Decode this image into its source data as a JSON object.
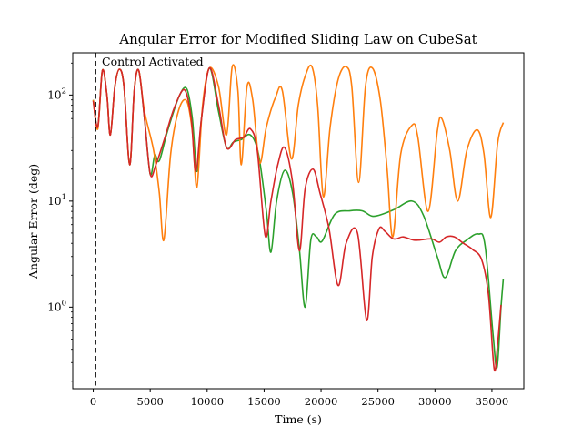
{
  "chart_data": {
    "type": "line",
    "title": "Angular Error for Modified Sliding Law on CubeSat",
    "xlabel": "Time (s)",
    "ylabel": "Angular Error (deg)",
    "xlim": [
      -1800,
      37800
    ],
    "ylim": [
      0.17,
      250
    ],
    "yscale": "log",
    "grid": false,
    "x_ticks": [
      0,
      5000,
      10000,
      15000,
      20000,
      25000,
      30000,
      35000
    ],
    "x_tick_labels": [
      "0",
      "5000",
      "10000",
      "15000",
      "20000",
      "25000",
      "30000",
      "35000"
    ],
    "y_ticks": [
      1,
      10,
      100
    ],
    "y_tick_labels": [
      "10^0",
      "10^1",
      "10^2"
    ],
    "annotation": {
      "text": "Control Activated",
      "vline_x": 200
    },
    "series": [
      {
        "color": "#2ca02c",
        "points": [
          [
            0,
            90
          ],
          [
            400,
            50
          ],
          [
            800,
            170
          ],
          [
            1200,
            100
          ],
          [
            1500,
            42
          ],
          [
            1900,
            120
          ],
          [
            2300,
            175
          ],
          [
            2700,
            120
          ],
          [
            3200,
            22
          ],
          [
            3600,
            110
          ],
          [
            4000,
            170
          ],
          [
            4500,
            60
          ],
          [
            5000,
            18
          ],
          [
            5400,
            27
          ],
          [
            5800,
            24
          ],
          [
            6500,
            45
          ],
          [
            7500,
            95
          ],
          [
            8200,
            115
          ],
          [
            8700,
            60
          ],
          [
            9100,
            19
          ],
          [
            9500,
            60
          ],
          [
            10200,
            180
          ],
          [
            11000,
            70
          ],
          [
            11700,
            32
          ],
          [
            12300,
            36
          ],
          [
            13000,
            38
          ],
          [
            13800,
            42
          ],
          [
            14500,
            28
          ],
          [
            15200,
            8
          ],
          [
            15600,
            3.3
          ],
          [
            16100,
            10
          ],
          [
            16800,
            19.5
          ],
          [
            17500,
            12
          ],
          [
            18100,
            3.5
          ],
          [
            18600,
            1.0
          ],
          [
            19100,
            4.3
          ],
          [
            19600,
            4.6
          ],
          [
            20100,
            4.2
          ],
          [
            21200,
            7.5
          ],
          [
            22500,
            8.1
          ],
          [
            23600,
            8.1
          ],
          [
            24500,
            7.2
          ],
          [
            25500,
            7.6
          ],
          [
            26500,
            8.4
          ],
          [
            28000,
            10
          ],
          [
            29000,
            7.3
          ],
          [
            30200,
            3
          ],
          [
            30900,
            1.9
          ],
          [
            31800,
            3.4
          ],
          [
            32800,
            4.3
          ],
          [
            33800,
            4.9
          ],
          [
            34400,
            3.8
          ],
          [
            35100,
            0.55
          ],
          [
            35450,
            0.27
          ],
          [
            35800,
            1.0
          ],
          [
            36000,
            1.85
          ]
        ]
      },
      {
        "color": "#ff7f0e",
        "points": [
          [
            0,
            90
          ],
          [
            400,
            48
          ],
          [
            800,
            170
          ],
          [
            1200,
            100
          ],
          [
            1500,
            42
          ],
          [
            1900,
            120
          ],
          [
            2300,
            175
          ],
          [
            2700,
            120
          ],
          [
            3200,
            22
          ],
          [
            3600,
            110
          ],
          [
            4000,
            170
          ],
          [
            4500,
            70
          ],
          [
            5300,
            30
          ],
          [
            5800,
            12
          ],
          [
            6200,
            4.3
          ],
          [
            6800,
            28
          ],
          [
            7500,
            72
          ],
          [
            8200,
            88
          ],
          [
            8700,
            45
          ],
          [
            9100,
            13.5
          ],
          [
            9600,
            80
          ],
          [
            10200,
            180
          ],
          [
            11000,
            120
          ],
          [
            11700,
            42
          ],
          [
            12200,
            185
          ],
          [
            12700,
            110
          ],
          [
            13000,
            22
          ],
          [
            13500,
            120
          ],
          [
            14000,
            90
          ],
          [
            14600,
            23
          ],
          [
            15200,
            50
          ],
          [
            16000,
            95
          ],
          [
            16600,
            110
          ],
          [
            17400,
            25
          ],
          [
            18000,
            80
          ],
          [
            18600,
            150
          ],
          [
            19200,
            185
          ],
          [
            19700,
            80
          ],
          [
            20200,
            11
          ],
          [
            20800,
            50
          ],
          [
            21500,
            140
          ],
          [
            22200,
            185
          ],
          [
            22700,
            120
          ],
          [
            23300,
            15
          ],
          [
            23900,
            120
          ],
          [
            24500,
            180
          ],
          [
            25200,
            90
          ],
          [
            25800,
            20
          ],
          [
            26300,
            4.6
          ],
          [
            27000,
            28
          ],
          [
            28000,
            52
          ],
          [
            28500,
            40
          ],
          [
            29400,
            8
          ],
          [
            30200,
            45
          ],
          [
            30600,
            60
          ],
          [
            31300,
            30
          ],
          [
            32000,
            10
          ],
          [
            32800,
            30
          ],
          [
            33700,
            47
          ],
          [
            34300,
            28
          ],
          [
            34900,
            7
          ],
          [
            35500,
            35
          ],
          [
            36000,
            55
          ]
        ]
      },
      {
        "color": "#d62728",
        "points": [
          [
            0,
            88
          ],
          [
            400,
            50
          ],
          [
            800,
            170
          ],
          [
            1200,
            100
          ],
          [
            1500,
            42
          ],
          [
            1900,
            120
          ],
          [
            2300,
            175
          ],
          [
            2700,
            120
          ],
          [
            3200,
            22
          ],
          [
            3600,
            110
          ],
          [
            4000,
            170
          ],
          [
            4500,
            60
          ],
          [
            5000,
            18
          ],
          [
            5500,
            22
          ],
          [
            6300,
            40
          ],
          [
            7100,
            75
          ],
          [
            8000,
            112
          ],
          [
            8600,
            60
          ],
          [
            9000,
            19
          ],
          [
            9500,
            60
          ],
          [
            10200,
            180
          ],
          [
            11000,
            80
          ],
          [
            11700,
            32
          ],
          [
            12500,
            38
          ],
          [
            13200,
            40
          ],
          [
            13800,
            48
          ],
          [
            14400,
            30
          ],
          [
            15100,
            4.7
          ],
          [
            15600,
            10
          ],
          [
            16200,
            22
          ],
          [
            16800,
            32
          ],
          [
            17500,
            15
          ],
          [
            18100,
            3.4
          ],
          [
            18600,
            13
          ],
          [
            19300,
            20
          ],
          [
            19900,
            12
          ],
          [
            20700,
            5.5
          ],
          [
            21500,
            1.6
          ],
          [
            22200,
            4
          ],
          [
            23200,
            5
          ],
          [
            24000,
            0.75
          ],
          [
            24500,
            3
          ],
          [
            25100,
            5.5
          ],
          [
            25600,
            5.2
          ],
          [
            26200,
            4.5
          ],
          [
            26600,
            4.4
          ],
          [
            27200,
            4.6
          ],
          [
            28100,
            4.3
          ],
          [
            28700,
            4.3
          ],
          [
            29700,
            4.4
          ],
          [
            30400,
            4.1
          ],
          [
            31000,
            4.6
          ],
          [
            31700,
            4.6
          ],
          [
            32500,
            4.0
          ],
          [
            33300,
            3.5
          ],
          [
            34100,
            2.8
          ],
          [
            34700,
            1.3
          ],
          [
            35200,
            0.26
          ],
          [
            35500,
            0.45
          ],
          [
            35800,
            1.05
          ]
        ]
      }
    ]
  }
}
